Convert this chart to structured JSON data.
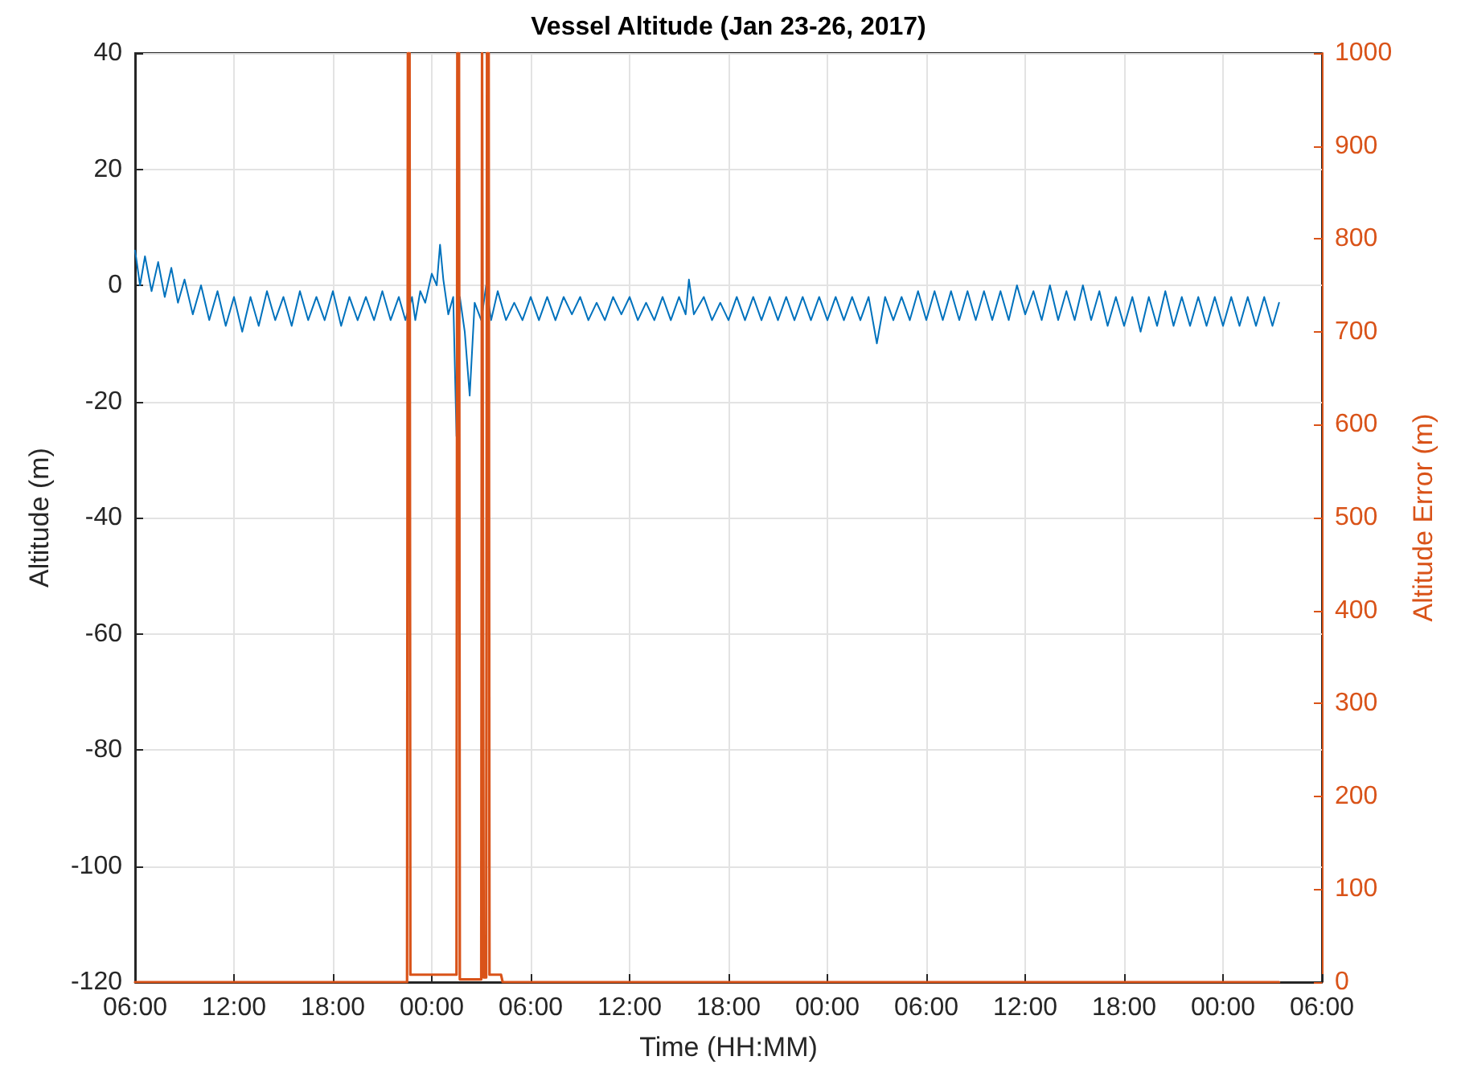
{
  "chart_data": {
    "type": "line",
    "title": "Vessel Altitude (Jan 23-26, 2017)",
    "xlabel": "Time (HH:MM)",
    "ylabel": "Altitude (m)",
    "y2label": "Altitude Error (m)",
    "xlim": [
      "2017-01-23T06:00",
      "2017-01-26T06:00"
    ],
    "xticks": [
      {
        "value": "2017-01-23T06:00",
        "label": "06:00"
      },
      {
        "value": "2017-01-23T12:00",
        "label": "12:00"
      },
      {
        "value": "2017-01-23T18:00",
        "label": "18:00"
      },
      {
        "value": "2017-01-24T00:00",
        "label": "00:00"
      },
      {
        "value": "2017-01-24T06:00",
        "label": "06:00"
      },
      {
        "value": "2017-01-24T12:00",
        "label": "12:00"
      },
      {
        "value": "2017-01-24T18:00",
        "label": "18:00"
      },
      {
        "value": "2017-01-25T00:00",
        "label": "00:00"
      },
      {
        "value": "2017-01-25T06:00",
        "label": "06:00"
      },
      {
        "value": "2017-01-25T12:00",
        "label": "12:00"
      },
      {
        "value": "2017-01-25T18:00",
        "label": "18:00"
      },
      {
        "value": "2017-01-26T00:00",
        "label": "00:00"
      },
      {
        "value": "2017-01-26T06:00",
        "label": "06:00"
      }
    ],
    "ylim": [
      -120,
      40
    ],
    "yticks": [
      -120,
      -100,
      -80,
      -60,
      -40,
      -20,
      0,
      20,
      40
    ],
    "y2lim": [
      0,
      1000
    ],
    "y2ticks": [
      0,
      100,
      200,
      300,
      400,
      500,
      600,
      700,
      800,
      900,
      1000
    ],
    "grid": true,
    "marker": "none",
    "line_style": "solid",
    "series": [
      {
        "color": "#0072bd",
        "x": [
          "2017-01-23T06:00",
          "2017-01-23T06:18",
          "2017-01-23T06:36",
          "2017-01-23T07:00",
          "2017-01-23T07:24",
          "2017-01-23T07:48",
          "2017-01-23T08:12",
          "2017-01-23T08:36",
          "2017-01-23T09:00",
          "2017-01-23T09:30",
          "2017-01-23T10:00",
          "2017-01-23T10:30",
          "2017-01-23T11:00",
          "2017-01-23T11:30",
          "2017-01-23T12:00",
          "2017-01-23T12:30",
          "2017-01-23T13:00",
          "2017-01-23T13:30",
          "2017-01-23T14:00",
          "2017-01-23T14:30",
          "2017-01-23T15:00",
          "2017-01-23T15:30",
          "2017-01-23T16:00",
          "2017-01-23T16:30",
          "2017-01-23T17:00",
          "2017-01-23T17:30",
          "2017-01-23T18:00",
          "2017-01-23T18:30",
          "2017-01-23T19:00",
          "2017-01-23T19:30",
          "2017-01-23T20:00",
          "2017-01-23T20:30",
          "2017-01-23T21:00",
          "2017-01-23T21:30",
          "2017-01-23T22:00",
          "2017-01-23T22:24",
          "2017-01-23T22:48",
          "2017-01-23T23:00",
          "2017-01-23T23:18",
          "2017-01-23T23:36",
          "2017-01-24T00:00",
          "2017-01-24T00:18",
          "2017-01-24T00:30",
          "2017-01-24T00:42",
          "2017-01-24T01:00",
          "2017-01-24T01:18",
          "2017-01-24T01:30",
          "2017-01-24T01:42",
          "2017-01-24T02:00",
          "2017-01-24T02:18",
          "2017-01-24T02:36",
          "2017-01-24T03:00",
          "2017-01-24T03:18",
          "2017-01-24T03:36",
          "2017-01-24T04:00",
          "2017-01-24T04:30",
          "2017-01-24T05:00",
          "2017-01-24T05:30",
          "2017-01-24T06:00",
          "2017-01-24T06:30",
          "2017-01-24T07:00",
          "2017-01-24T07:30",
          "2017-01-24T08:00",
          "2017-01-24T08:30",
          "2017-01-24T09:00",
          "2017-01-24T09:30",
          "2017-01-24T10:00",
          "2017-01-24T10:30",
          "2017-01-24T11:00",
          "2017-01-24T11:30",
          "2017-01-24T12:00",
          "2017-01-24T12:30",
          "2017-01-24T13:00",
          "2017-01-24T13:30",
          "2017-01-24T14:00",
          "2017-01-24T14:30",
          "2017-01-24T15:00",
          "2017-01-24T15:24",
          "2017-01-24T15:36",
          "2017-01-24T15:54",
          "2017-01-24T16:30",
          "2017-01-24T17:00",
          "2017-01-24T17:30",
          "2017-01-24T18:00",
          "2017-01-24T18:30",
          "2017-01-24T19:00",
          "2017-01-24T19:30",
          "2017-01-24T20:00",
          "2017-01-24T20:30",
          "2017-01-24T21:00",
          "2017-01-24T21:30",
          "2017-01-24T22:00",
          "2017-01-24T22:30",
          "2017-01-24T23:00",
          "2017-01-24T23:30",
          "2017-01-25T00:00",
          "2017-01-25T00:30",
          "2017-01-25T01:00",
          "2017-01-25T01:30",
          "2017-01-25T02:00",
          "2017-01-25T02:30",
          "2017-01-25T03:00",
          "2017-01-25T03:30",
          "2017-01-25T04:00",
          "2017-01-25T04:30",
          "2017-01-25T05:00",
          "2017-01-25T05:30",
          "2017-01-25T06:00",
          "2017-01-25T06:30",
          "2017-01-25T07:00",
          "2017-01-25T07:30",
          "2017-01-25T08:00",
          "2017-01-25T08:30",
          "2017-01-25T09:00",
          "2017-01-25T09:30",
          "2017-01-25T10:00",
          "2017-01-25T10:30",
          "2017-01-25T11:00",
          "2017-01-25T11:30",
          "2017-01-25T12:00",
          "2017-01-25T12:30",
          "2017-01-25T13:00",
          "2017-01-25T13:30",
          "2017-01-25T14:00",
          "2017-01-25T14:30",
          "2017-01-25T15:00",
          "2017-01-25T15:30",
          "2017-01-25T16:00",
          "2017-01-25T16:30",
          "2017-01-25T17:00",
          "2017-01-25T17:30",
          "2017-01-25T18:00",
          "2017-01-25T18:30",
          "2017-01-25T19:00",
          "2017-01-25T19:30",
          "2017-01-25T20:00",
          "2017-01-25T20:30",
          "2017-01-25T21:00",
          "2017-01-25T21:30",
          "2017-01-25T22:00",
          "2017-01-25T22:30",
          "2017-01-25T23:00",
          "2017-01-25T23:30",
          "2017-01-26T00:00",
          "2017-01-26T00:30",
          "2017-01-26T01:00",
          "2017-01-26T01:30",
          "2017-01-26T02:00",
          "2017-01-26T02:30",
          "2017-01-26T03:00",
          "2017-01-26T03:24"
        ],
        "values": [
          6,
          0,
          5,
          -1,
          4,
          -2,
          3,
          -3,
          1,
          -5,
          0,
          -6,
          -1,
          -7,
          -2,
          -8,
          -2,
          -7,
          -1,
          -6,
          -2,
          -7,
          -1,
          -6,
          -2,
          -6,
          -1,
          -7,
          -2,
          -6,
          -2,
          -6,
          -1,
          -6,
          -2,
          -6,
          -2,
          -6,
          -1,
          -3,
          2,
          0,
          7,
          1,
          -5,
          -2,
          -26,
          -2,
          -8,
          -19,
          -3,
          -6,
          0,
          -6,
          -1,
          -6,
          -3,
          -6,
          -2,
          -6,
          -2,
          -6,
          -2,
          -5,
          -2,
          -6,
          -3,
          -6,
          -2,
          -5,
          -2,
          -6,
          -3,
          -6,
          -2,
          -6,
          -2,
          -5,
          1,
          -5,
          -2,
          -6,
          -3,
          -6,
          -2,
          -6,
          -2,
          -6,
          -2,
          -6,
          -2,
          -6,
          -2,
          -6,
          -2,
          -6,
          -2,
          -6,
          -2,
          -6,
          -2,
          -10,
          -2,
          -6,
          -2,
          -6,
          -1,
          -6,
          -1,
          -6,
          -1,
          -6,
          -1,
          -6,
          -1,
          -6,
          -1,
          -6,
          0,
          -5,
          -1,
          -6,
          0,
          -6,
          -1,
          -6,
          0,
          -6,
          -1,
          -7,
          -2,
          -7,
          -2,
          -8,
          -2,
          -7,
          -1,
          -7,
          -2,
          -7,
          -2,
          -7,
          -2,
          -7,
          -2,
          -7,
          -2,
          -7,
          -2,
          -7,
          -3
        ]
      },
      {
        "color": "#d95319",
        "axis": "y2",
        "x": [
          "2017-01-23T06:00",
          "2017-01-23T22:30",
          "2017-01-23T22:33",
          "2017-01-23T22:39",
          "2017-01-23T22:42",
          "2017-01-24T01:30",
          "2017-01-24T01:33",
          "2017-01-24T01:39",
          "2017-01-24T01:42",
          "2017-01-24T03:00",
          "2017-01-24T03:03",
          "2017-01-24T03:09",
          "2017-01-24T03:18",
          "2017-01-24T03:21",
          "2017-01-24T03:27",
          "2017-01-24T03:30",
          "2017-01-24T04:12",
          "2017-01-24T04:18",
          "2017-01-26T03:24"
        ],
        "values": [
          0,
          0,
          1000,
          1000,
          8,
          8,
          1000,
          1000,
          3,
          3,
          1000,
          5,
          5,
          1000,
          1000,
          8,
          8,
          0,
          0
        ]
      }
    ]
  }
}
